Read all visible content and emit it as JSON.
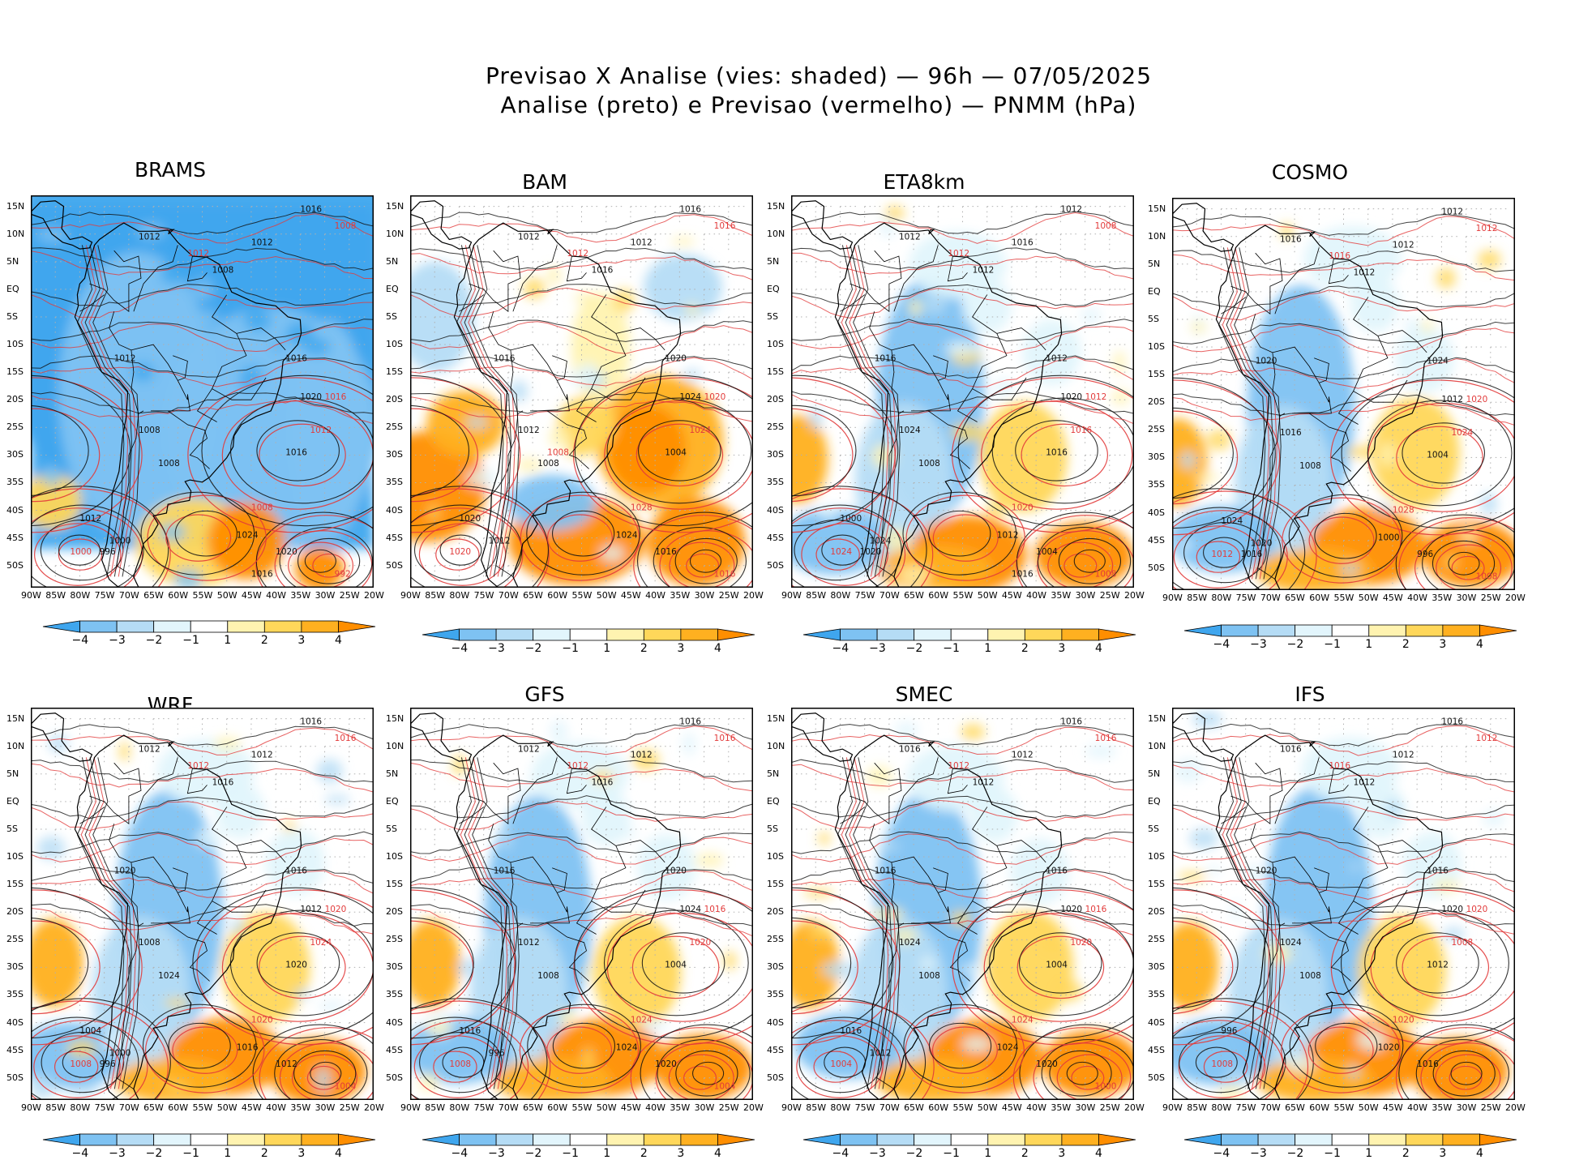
{
  "header": {
    "line1": "Previsao X Analise (vies: shaded) — 96h — 07/05/2025",
    "line2": "Analise (preto) e Previsao (vermelho) — PNMM (hPa)"
  },
  "lat_labels": [
    "15N",
    "10N",
    "5N",
    "EQ",
    "5S",
    "10S",
    "15S",
    "20S",
    "25S",
    "30S",
    "35S",
    "40S",
    "45S",
    "50S"
  ],
  "lon_labels": [
    "90W",
    "85W",
    "80W",
    "75W",
    "70W",
    "65W",
    "60W",
    "55W",
    "50W",
    "45W",
    "40W",
    "35W",
    "30W",
    "25W",
    "20W"
  ],
  "colorbar": {
    "labels": [
      "−4",
      "−3",
      "−2",
      "−1",
      "1",
      "2",
      "3",
      "4"
    ],
    "colors": [
      "#3fa6ee",
      "#7ec2f2",
      "#b5dcf5",
      "#e2f5fc",
      "#ffffff",
      "#fff3b0",
      "#ffd75a",
      "#ffb020",
      "#ff8e00"
    ]
  },
  "colors": {
    "analysis_contour": "#111111",
    "forecast_contour": "#e23b3b",
    "coastline": "#000000",
    "grid_dots": "#b0b0b0"
  },
  "panels": [
    {
      "id": "brams",
      "title": "BRAMS",
      "bias": "negative",
      "labels_black": [
        "1016",
        "1012",
        "1012",
        "1008",
        "1012",
        "1016",
        "1020",
        "1008",
        "1008",
        "1016",
        "1024",
        "1020",
        "1012",
        "1000",
        "996",
        "1016"
      ],
      "labels_red": [
        "1008",
        "1012",
        "1016",
        "1012",
        "1008",
        "1000",
        "992"
      ]
    },
    {
      "id": "bam",
      "title": "BAM",
      "bias": "positive",
      "labels_black": [
        "1016",
        "1012",
        "1012",
        "1016",
        "1016",
        "1020",
        "1024",
        "1012",
        "1008",
        "1004",
        "1024",
        "1016",
        "1020",
        "1012"
      ],
      "labels_red": [
        "1016",
        "1012",
        "1020",
        "1024",
        "1028",
        "1020",
        "1016",
        "1008"
      ]
    },
    {
      "id": "eta8km",
      "title": "ETA8km",
      "bias": "mixed",
      "labels_black": [
        "1012",
        "1016",
        "1012",
        "1012",
        "1016",
        "1012",
        "1020",
        "1024",
        "1008",
        "1016",
        "1012",
        "1004",
        "1000",
        "1024",
        "1020",
        "1016"
      ],
      "labels_red": [
        "1008",
        "1012",
        "1012",
        "1016",
        "1020",
        "1024",
        "1008"
      ]
    },
    {
      "id": "cosmo",
      "title": "COSMO",
      "bias": "mixed",
      "labels_black": [
        "1012",
        "1012",
        "1016",
        "1012",
        "1020",
        "1024",
        "1012",
        "1016",
        "1008",
        "1004",
        "1000",
        "996",
        "1024",
        "1020",
        "1016"
      ],
      "labels_red": [
        "1012",
        "1016",
        "1020",
        "1024",
        "1028",
        "1012",
        "1008"
      ]
    },
    {
      "id": "wrf",
      "title": "WRF",
      "bias": "mixed",
      "labels_black": [
        "1016",
        "1012",
        "1012",
        "1016",
        "1020",
        "1016",
        "1012",
        "1008",
        "1024",
        "1020",
        "1016",
        "1012",
        "1004",
        "1000",
        "996"
      ],
      "labels_red": [
        "1016",
        "1012",
        "1020",
        "1024",
        "1020",
        "1008",
        "1004"
      ]
    },
    {
      "id": "gfs",
      "title": "GFS",
      "bias": "mixed",
      "labels_black": [
        "1016",
        "1012",
        "1012",
        "1016",
        "1016",
        "1020",
        "1024",
        "1012",
        "1008",
        "1004",
        "1024",
        "1020",
        "1016",
        "996"
      ],
      "labels_red": [
        "1016",
        "1012",
        "1016",
        "1020",
        "1024",
        "1008",
        "1004"
      ]
    },
    {
      "id": "smec",
      "title": "SMEC",
      "bias": "mixed",
      "labels_black": [
        "1016",
        "1012",
        "1016",
        "1012",
        "1016",
        "1016",
        "1020",
        "1024",
        "1008",
        "1004",
        "1024",
        "1020",
        "1016",
        "1012"
      ],
      "labels_red": [
        "1016",
        "1012",
        "1016",
        "1020",
        "1024",
        "1004",
        "1000"
      ]
    },
    {
      "id": "ifs",
      "title": "IFS",
      "bias": "mixed",
      "labels_black": [
        "1016",
        "1012",
        "1016",
        "1012",
        "1020",
        "1016",
        "1020",
        "1024",
        "1008",
        "1012",
        "1020",
        "1016",
        "996"
      ],
      "labels_red": [
        "1012",
        "1016",
        "1020",
        "1008",
        "1020",
        "1008"
      ]
    }
  ]
}
